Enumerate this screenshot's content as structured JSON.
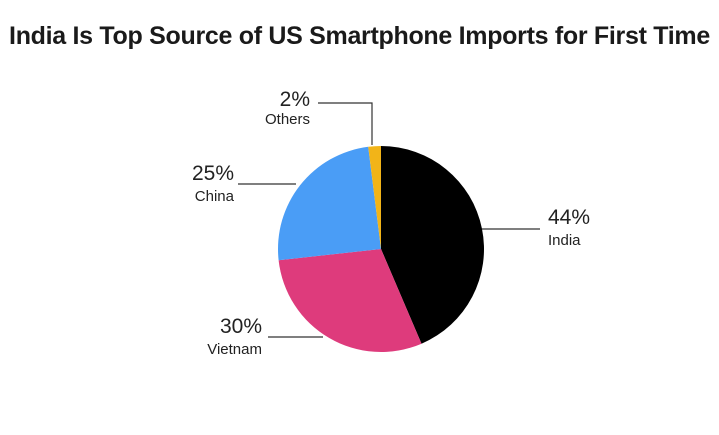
{
  "chart_data": {
    "type": "pie",
    "title": "India Is Top Source of US Smartphone Imports for First Time",
    "slices": [
      {
        "label": "India",
        "value": 44,
        "value_label": "44%",
        "color": "#000000"
      },
      {
        "label": "Vietnam",
        "value": 30,
        "value_label": "30%",
        "color": "#de3b7c"
      },
      {
        "label": "China",
        "value": 25,
        "value_label": "25%",
        "color": "#4a9df6"
      },
      {
        "label": "Others",
        "value": 2,
        "value_label": "2%",
        "color": "#f2b418"
      }
    ],
    "start": "12 o'clock",
    "direction": "clockwise"
  }
}
